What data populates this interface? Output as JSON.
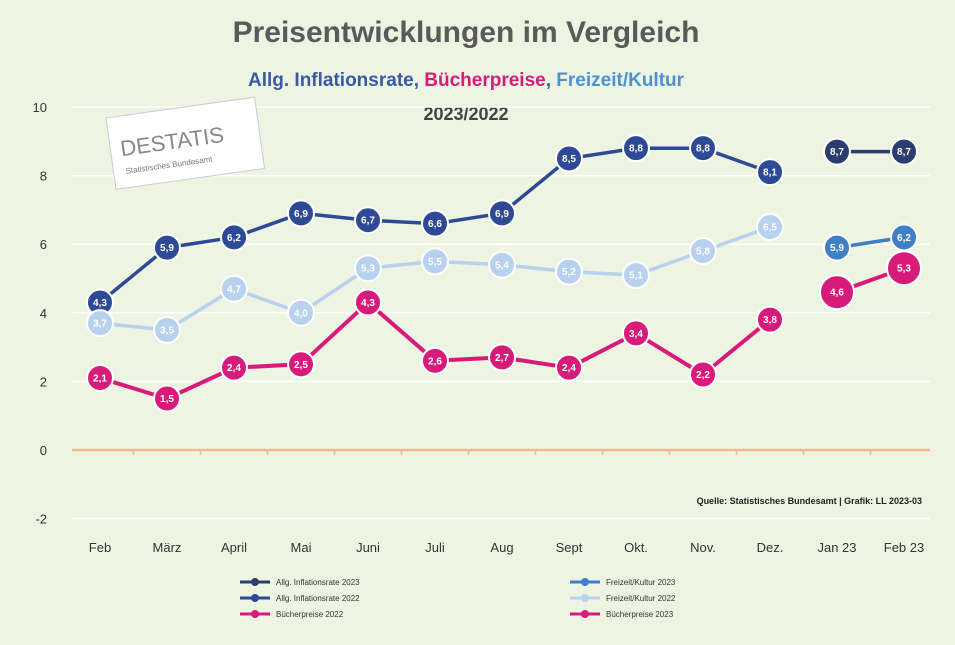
{
  "header": {
    "title": "Preisentwicklungen im  Vergleich",
    "subtitle_parts": [
      {
        "text": "Allg. Inflationsrate",
        "color": "#3a5aa5"
      },
      {
        "text": ", ",
        "color": "#3a5aa5"
      },
      {
        "text": "Bücherpreise",
        "color": "#d81b7a"
      },
      {
        "text": ", ",
        "color": "#3a5aa5"
      },
      {
        "text": "Freizeit/Kultur",
        "color": "#4a92d4"
      }
    ],
    "period": "2023/2022"
  },
  "logo": {
    "text_part1": "DE",
    "text_part2": "STATIS",
    "caption": "Statistisches Bundesamt"
  },
  "source": "Quelle: Statistisches Bundesamt | Grafik: LL 2023-03",
  "chart_data": {
    "type": "line",
    "categories": [
      "Feb",
      "März",
      "April",
      "Mai",
      "Juni",
      "Juli",
      "Aug",
      "Sept",
      "Okt.",
      "Nov.",
      "Dez.",
      "Jan 23",
      "Feb 23"
    ],
    "y_ticks": [
      10,
      8,
      6,
      4,
      2,
      0,
      -2
    ],
    "ylim": [
      -2,
      10
    ],
    "grid": true,
    "zero_line_color": "#f5b98a",
    "series": [
      {
        "name": "Allg. Inflationsrate 2022",
        "color": "#2e4a96",
        "values": [
          4.3,
          5.9,
          6.2,
          6.9,
          6.7,
          6.6,
          6.9,
          8.5,
          8.8,
          8.8,
          8.1,
          null,
          null
        ]
      },
      {
        "name": "Freizeit/Kultur 2022",
        "color": "#b7d1ef",
        "values": [
          3.7,
          3.5,
          4.7,
          4.0,
          5.3,
          5.5,
          5.4,
          5.2,
          5.1,
          5.8,
          6.5,
          null,
          null
        ]
      },
      {
        "name": "Bücherpreise 2022",
        "color": "#d81b7a",
        "values": [
          2.1,
          1.5,
          2.4,
          2.5,
          4.3,
          2.6,
          2.7,
          2.4,
          3.4,
          2.2,
          3.8,
          null,
          null
        ]
      },
      {
        "name": "Allg. Inflationsrate 2023",
        "color": "#2b3c6e",
        "values": [
          null,
          null,
          null,
          null,
          null,
          null,
          null,
          null,
          null,
          null,
          null,
          8.7,
          8.7
        ]
      },
      {
        "name": "Freizeit/Kultur 2023",
        "color": "#3f7fc6",
        "values": [
          null,
          null,
          null,
          null,
          null,
          null,
          null,
          null,
          null,
          null,
          null,
          5.9,
          6.2
        ]
      },
      {
        "name": "Bücherpreise 2023",
        "color": "#d81b7a",
        "values": [
          null,
          null,
          null,
          null,
          null,
          null,
          null,
          null,
          null,
          null,
          null,
          4.6,
          5.3
        ]
      }
    ],
    "legend_placement": "bottom"
  }
}
